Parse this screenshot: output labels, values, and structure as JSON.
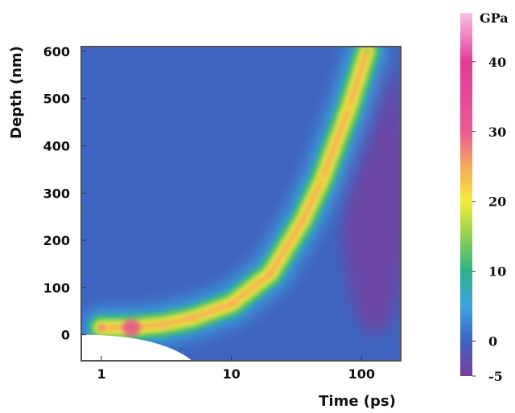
{
  "chart_data": {
    "type": "heatmap",
    "title": "",
    "xlabel": "Time (ps)",
    "ylabel": "Depth (nm)",
    "x_scale": "log",
    "xlim": [
      0.7,
      200
    ],
    "ylim": [
      -55,
      610
    ],
    "x_ticks": [
      {
        "value": 1,
        "label": "1"
      },
      {
        "value": 10,
        "label": "10"
      },
      {
        "value": 100,
        "label": "100"
      }
    ],
    "y_ticks": [
      {
        "value": 0,
        "label": "0"
      },
      {
        "value": 100,
        "label": "100"
      },
      {
        "value": 200,
        "label": "200"
      },
      {
        "value": 300,
        "label": "300"
      },
      {
        "value": 400,
        "label": "400"
      },
      {
        "value": 500,
        "label": "500"
      },
      {
        "value": 600,
        "label": "600"
      }
    ],
    "colorbar": {
      "unit": "GPa",
      "range": [
        -5,
        47
      ],
      "ticks": [
        {
          "value": 40,
          "label": "40"
        },
        {
          "value": 30,
          "label": "30"
        },
        {
          "value": 20,
          "label": "20"
        },
        {
          "value": 10,
          "label": "10"
        },
        {
          "value": 0,
          "label": "0"
        },
        {
          "value": -5,
          "label": "-5"
        }
      ],
      "colors": [
        {
          "value": -5,
          "color": "#7b3d9c"
        },
        {
          "value": 0,
          "color": "#3f64bf"
        },
        {
          "value": 5,
          "color": "#3da3df"
        },
        {
          "value": 10,
          "color": "#2db38a"
        },
        {
          "value": 15,
          "color": "#8fd04f"
        },
        {
          "value": 20,
          "color": "#f2ec3a"
        },
        {
          "value": 25,
          "color": "#f6a85a"
        },
        {
          "value": 30,
          "color": "#ec5a94"
        },
        {
          "value": 40,
          "color": "#e33a9c"
        },
        {
          "value": 47,
          "color": "#f6c4e4"
        }
      ]
    },
    "pressure_front_ridge": [
      {
        "time_ps": 1.0,
        "depth_nm": 15,
        "peak_gpa": 30
      },
      {
        "time_ps": 1.7,
        "depth_nm": 15,
        "peak_gpa": 44
      },
      {
        "time_ps": 3,
        "depth_nm": 22,
        "peak_gpa": 26
      },
      {
        "time_ps": 5,
        "depth_nm": 35,
        "peak_gpa": 25
      },
      {
        "time_ps": 10,
        "depth_nm": 65,
        "peak_gpa": 26
      },
      {
        "time_ps": 20,
        "depth_nm": 130,
        "peak_gpa": 28
      },
      {
        "time_ps": 35,
        "depth_nm": 240,
        "peak_gpa": 28
      },
      {
        "time_ps": 50,
        "depth_nm": 330,
        "peak_gpa": 24
      },
      {
        "time_ps": 80,
        "depth_nm": 480,
        "peak_gpa": 20
      },
      {
        "time_ps": 110,
        "depth_nm": 600,
        "peak_gpa": 18
      }
    ],
    "tension_region": {
      "time_ps": [
        60,
        200
      ],
      "depth_nm": [
        0,
        600
      ],
      "min_gpa": -5
    },
    "white_region": {
      "label": "",
      "time_ps": [
        0.7,
        5
      ],
      "depth_nm": [
        -55,
        0
      ]
    },
    "grid": false,
    "legend": "colorbar-right"
  }
}
